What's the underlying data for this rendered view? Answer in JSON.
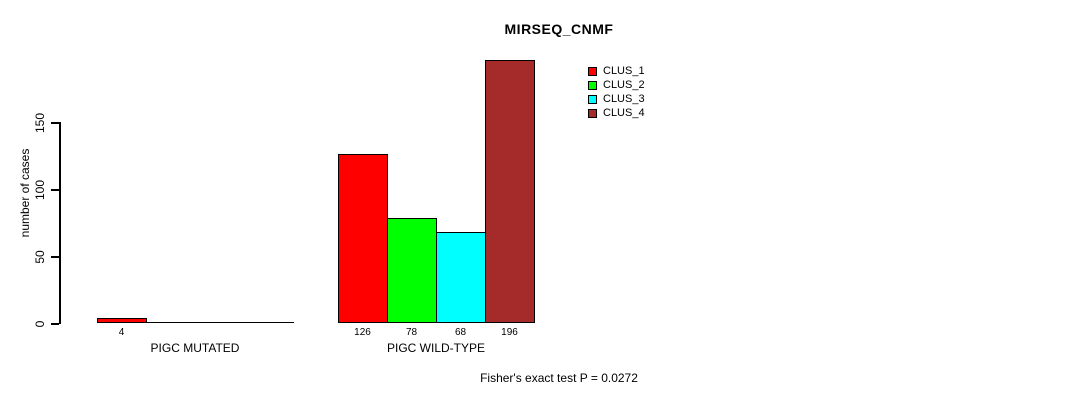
{
  "chart_data": {
    "type": "bar",
    "title": "MIRSEQ_CNMF",
    "ylabel": "number of cases",
    "ylim": [
      0,
      196
    ],
    "yticks": [
      0,
      50,
      100,
      150
    ],
    "grid": false,
    "categories": [
      "PIGC MUTATED",
      "PIGC WILD-TYPE"
    ],
    "series": [
      {
        "name": "CLUS_1",
        "color": "#ff0000",
        "values": [
          4,
          126
        ]
      },
      {
        "name": "CLUS_2",
        "color": "#00ff00",
        "values": [
          0,
          78
        ]
      },
      {
        "name": "CLUS_3",
        "color": "#00ffff",
        "values": [
          0,
          68
        ]
      },
      {
        "name": "CLUS_4",
        "color": "#a52a2a",
        "values": [
          0,
          196
        ]
      }
    ],
    "bar_value_labels": [
      [
        "4",
        "126"
      ],
      [
        "",
        "78"
      ],
      [
        "",
        "68"
      ],
      [
        "",
        "196"
      ]
    ],
    "legend_position": "top-right",
    "annotation": "Fisher's exact test P = 0.0272"
  }
}
